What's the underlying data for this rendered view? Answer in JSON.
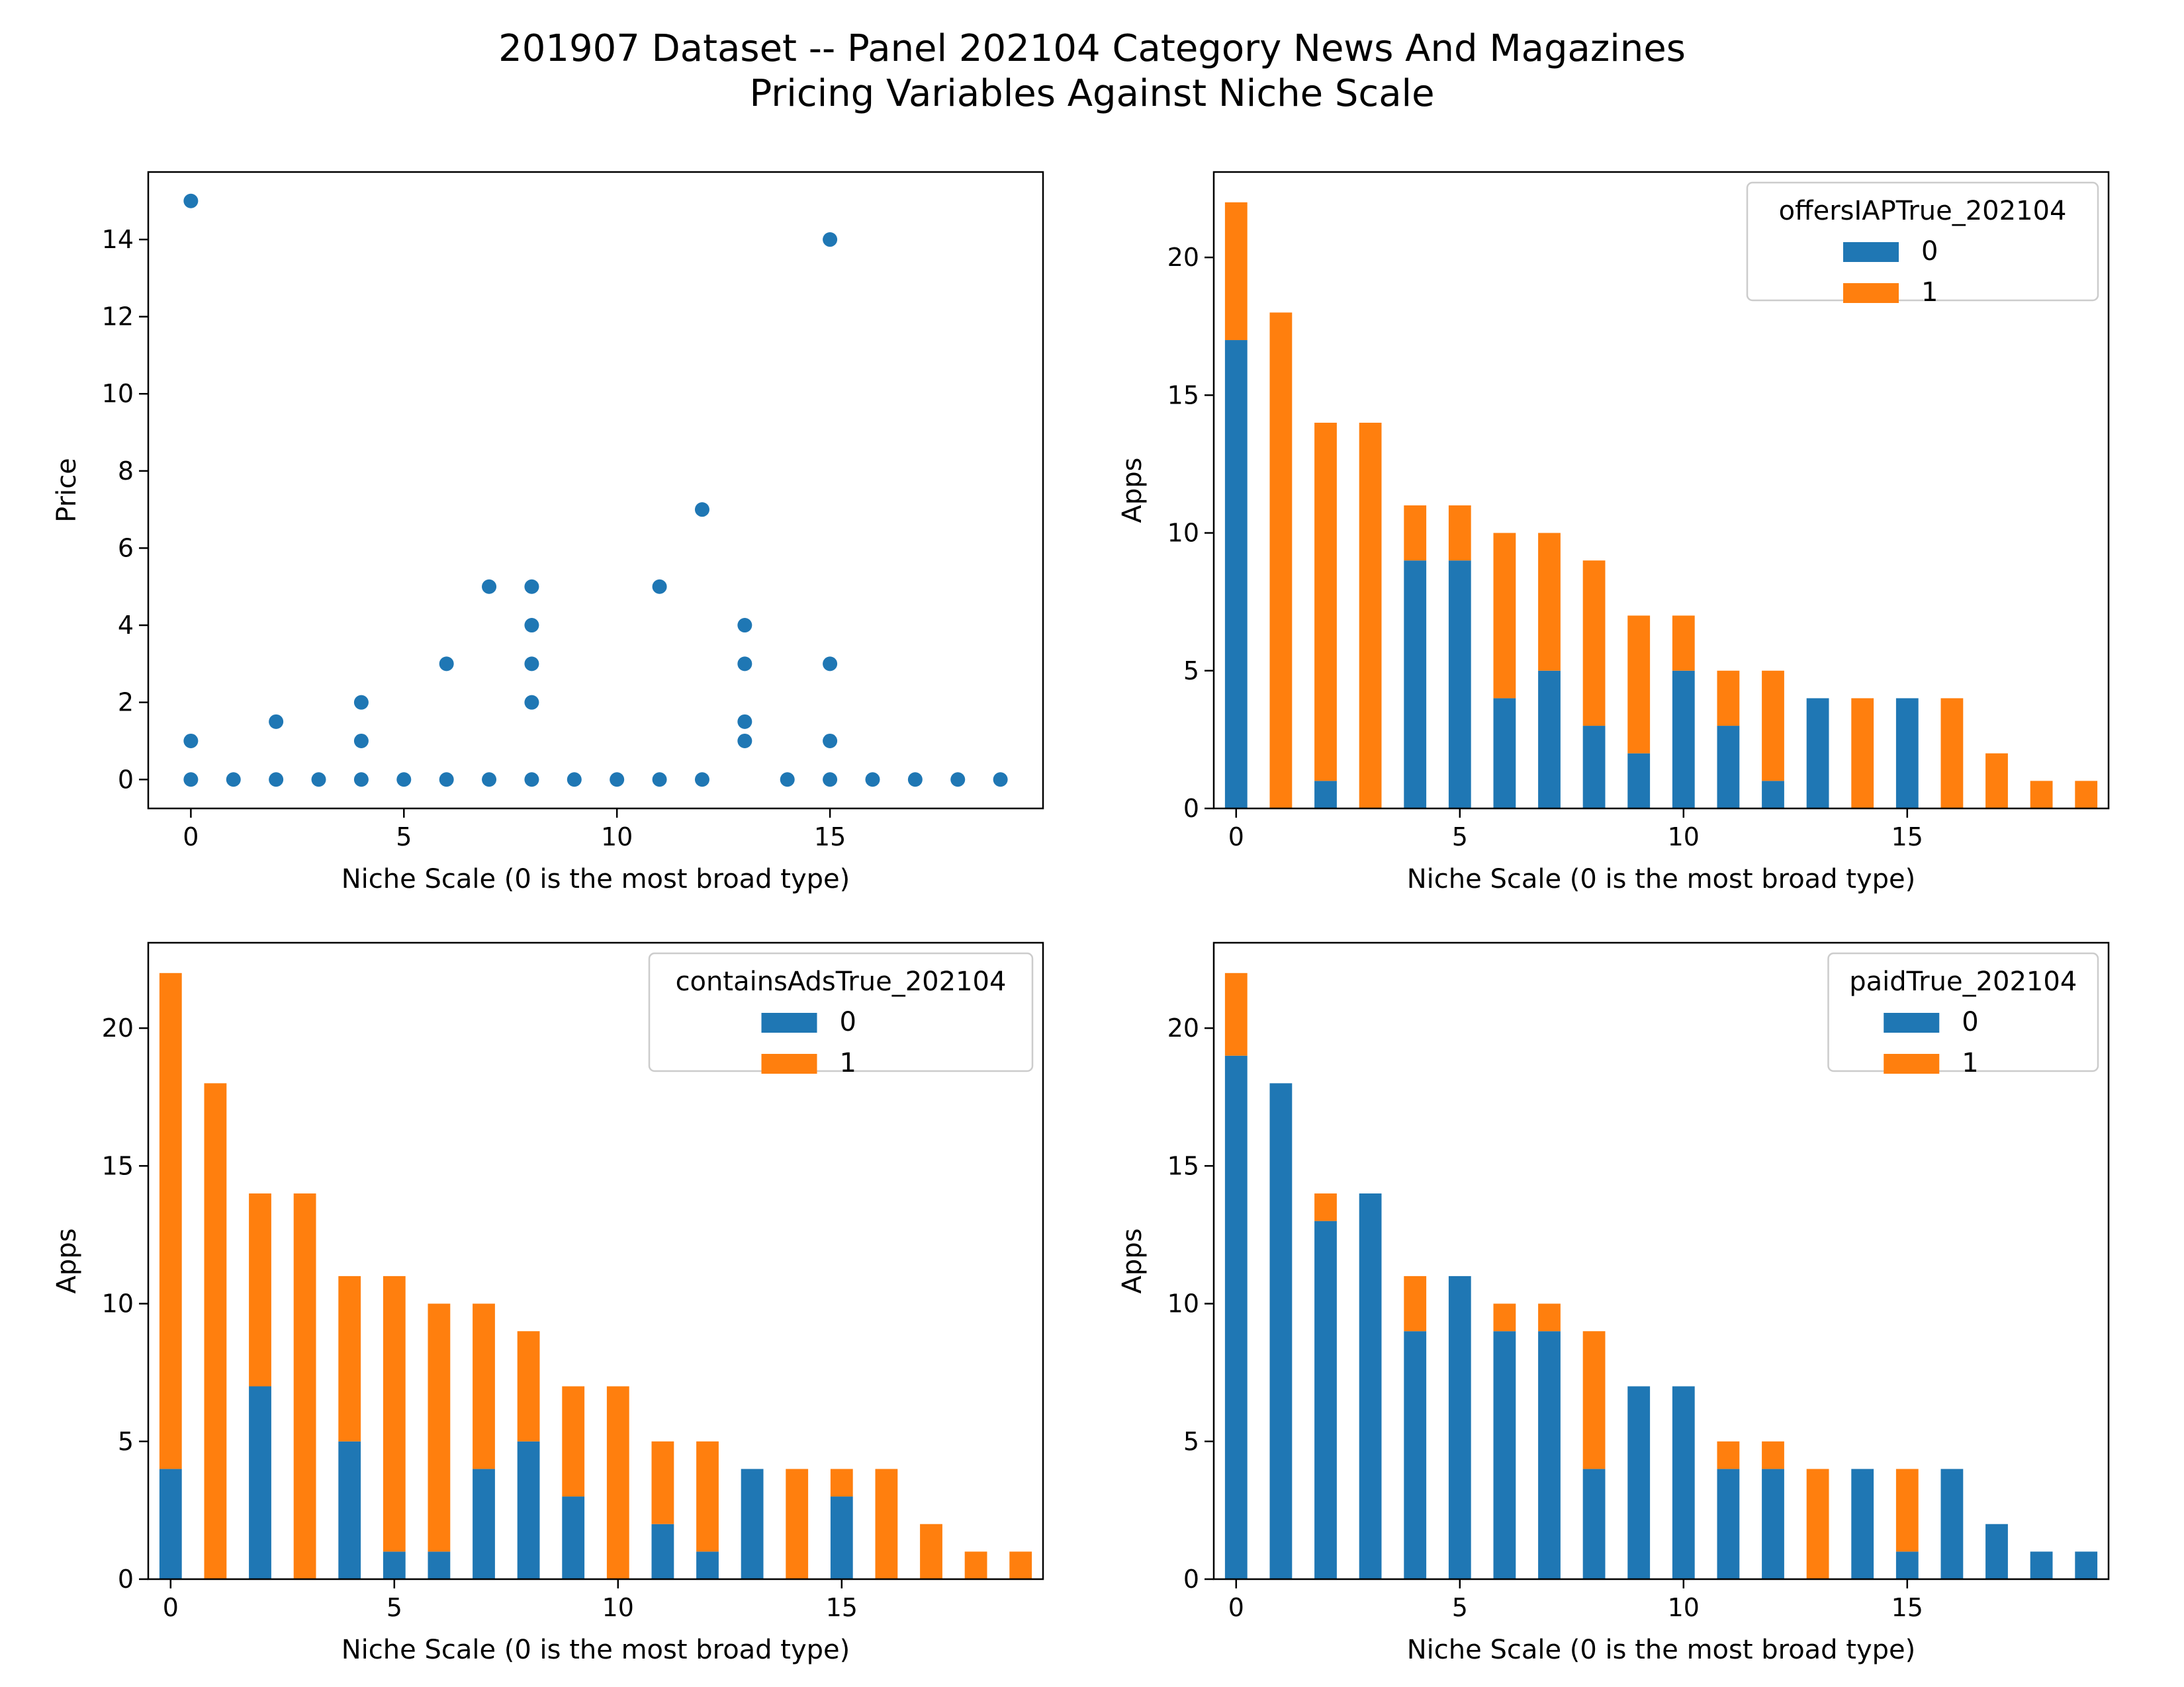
{
  "figure": {
    "title_line1": "201907 Dataset -- Panel 202104 Category News And Magazines",
    "title_line2": "Pricing Variables Against Niche Scale"
  },
  "colors": {
    "series0": "#1f77b4",
    "series1": "#ff7f0e",
    "axes": "#000000",
    "legend_border": "#cccccc"
  },
  "chart_data": [
    {
      "type": "scatter",
      "position": "top-left",
      "xlabel": "Niche Scale (0 is the most broad type)",
      "ylabel": "Price",
      "xlim": [
        -1,
        20
      ],
      "ylim": [
        -0.75,
        15.75
      ],
      "xticks": [
        0,
        5,
        10,
        15
      ],
      "yticks": [
        0,
        2,
        4,
        6,
        8,
        10,
        12,
        14
      ],
      "points": [
        [
          0,
          15
        ],
        [
          0,
          1
        ],
        [
          0,
          0
        ],
        [
          1,
          0
        ],
        [
          2,
          1.5
        ],
        [
          2,
          0
        ],
        [
          3,
          0
        ],
        [
          4,
          2
        ],
        [
          4,
          1
        ],
        [
          4,
          0
        ],
        [
          5,
          0
        ],
        [
          6,
          3
        ],
        [
          6,
          0
        ],
        [
          7,
          5
        ],
        [
          7,
          0
        ],
        [
          8,
          5
        ],
        [
          8,
          4
        ],
        [
          8,
          3
        ],
        [
          8,
          2
        ],
        [
          8,
          0
        ],
        [
          9,
          0
        ],
        [
          10,
          0
        ],
        [
          11,
          5
        ],
        [
          11,
          0
        ],
        [
          12,
          7
        ],
        [
          12,
          0
        ],
        [
          13,
          4
        ],
        [
          13,
          3
        ],
        [
          13,
          1.5
        ],
        [
          13,
          1
        ],
        [
          14,
          0
        ],
        [
          15,
          14
        ],
        [
          15,
          3
        ],
        [
          15,
          1
        ],
        [
          15,
          0
        ],
        [
          16,
          0
        ],
        [
          17,
          0
        ],
        [
          18,
          0
        ],
        [
          19,
          0
        ]
      ]
    },
    {
      "type": "bar",
      "stacked": true,
      "position": "top-right",
      "xlabel": "Niche Scale (0 is the most broad type)",
      "ylabel": "Apps",
      "ylim": [
        0,
        23.1
      ],
      "yticks": [
        0,
        5,
        10,
        15,
        20
      ],
      "xticks": [
        0,
        5,
        10,
        15
      ],
      "categories": [
        0,
        1,
        2,
        3,
        4,
        5,
        6,
        7,
        8,
        9,
        10,
        11,
        12,
        13,
        14,
        15,
        16,
        17,
        18,
        19
      ],
      "legend_title": "offersIAPTrue_202104",
      "legend_position": "top-right",
      "series": [
        {
          "name": "0",
          "values": [
            17,
            0,
            1,
            0,
            9,
            9,
            4,
            5,
            3,
            2,
            5,
            3,
            1,
            4,
            0,
            4,
            0,
            0,
            0,
            0
          ]
        },
        {
          "name": "1",
          "values": [
            5,
            18,
            13,
            14,
            2,
            2,
            6,
            5,
            6,
            5,
            2,
            2,
            4,
            0,
            4,
            0,
            4,
            2,
            1,
            1
          ]
        }
      ]
    },
    {
      "type": "bar",
      "stacked": true,
      "position": "bottom-left",
      "xlabel": "Niche Scale (0 is the most broad type)",
      "ylabel": "Apps",
      "ylim": [
        0,
        23.1
      ],
      "yticks": [
        0,
        5,
        10,
        15,
        20
      ],
      "xticks": [
        0,
        5,
        10,
        15
      ],
      "categories": [
        0,
        1,
        2,
        3,
        4,
        5,
        6,
        7,
        8,
        9,
        10,
        11,
        12,
        13,
        14,
        15,
        16,
        17,
        18,
        19
      ],
      "legend_title": "containsAdsTrue_202104",
      "legend_position": "top-right",
      "series": [
        {
          "name": "0",
          "values": [
            4,
            0,
            7,
            0,
            5,
            1,
            1,
            4,
            5,
            3,
            0,
            2,
            1,
            4,
            0,
            3,
            0,
            0,
            0,
            0
          ]
        },
        {
          "name": "1",
          "values": [
            18,
            18,
            7,
            14,
            6,
            10,
            9,
            6,
            4,
            4,
            7,
            3,
            4,
            0,
            4,
            1,
            4,
            2,
            1,
            1
          ]
        }
      ]
    },
    {
      "type": "bar",
      "stacked": true,
      "position": "bottom-right",
      "xlabel": "Niche Scale (0 is the most broad type)",
      "ylabel": "Apps",
      "ylim": [
        0,
        23.1
      ],
      "yticks": [
        0,
        5,
        10,
        15,
        20
      ],
      "xticks": [
        0,
        5,
        10,
        15
      ],
      "categories": [
        0,
        1,
        2,
        3,
        4,
        5,
        6,
        7,
        8,
        9,
        10,
        11,
        12,
        13,
        14,
        15,
        16,
        17,
        18,
        19
      ],
      "legend_title": "paidTrue_202104",
      "legend_position": "top-right",
      "series": [
        {
          "name": "0",
          "values": [
            19,
            18,
            13,
            14,
            9,
            11,
            9,
            9,
            4,
            7,
            7,
            4,
            4,
            0,
            4,
            1,
            4,
            2,
            1,
            1
          ]
        },
        {
          "name": "1",
          "values": [
            3,
            0,
            1,
            0,
            2,
            0,
            1,
            1,
            5,
            0,
            0,
            1,
            1,
            4,
            0,
            3,
            0,
            0,
            0,
            0
          ]
        }
      ]
    }
  ]
}
